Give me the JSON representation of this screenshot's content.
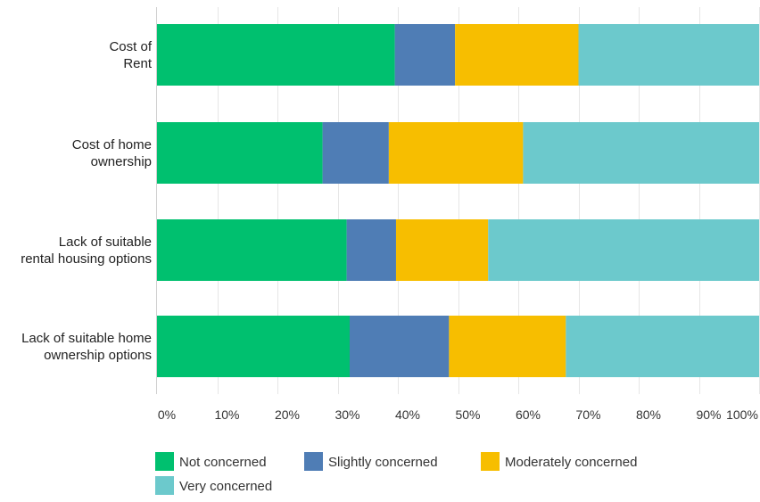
{
  "chart_data": {
    "type": "bar",
    "orientation": "horizontal",
    "stacked": true,
    "categories": [
      [
        "Cost of",
        "Rent"
      ],
      [
        "Cost of home",
        "ownership"
      ],
      [
        "Lack of suitable",
        "rental housing options"
      ],
      [
        "Lack of suitable home",
        "ownership options"
      ]
    ],
    "series": [
      {
        "name": "Not concerned",
        "color": "#00c06f",
        "values": [
          39.5,
          27.5,
          31.5,
          32.0
        ]
      },
      {
        "name": "Slightly concerned",
        "color": "#4f7db5",
        "values": [
          10.0,
          11.0,
          8.2,
          16.5
        ]
      },
      {
        "name": "Moderately concerned",
        "color": "#f7be00",
        "values": [
          20.5,
          22.3,
          15.3,
          19.4
        ]
      },
      {
        "name": "Very concerned",
        "color": "#6cc9cc",
        "values": [
          30.0,
          39.2,
          45.0,
          32.1
        ]
      }
    ],
    "x_ticks": [
      "0%",
      "10%",
      "20%",
      "30%",
      "40%",
      "50%",
      "60%",
      "70%",
      "80%",
      "90%",
      "100%"
    ],
    "xlim": [
      0,
      100
    ],
    "grid": true,
    "legend_position": "bottom"
  }
}
